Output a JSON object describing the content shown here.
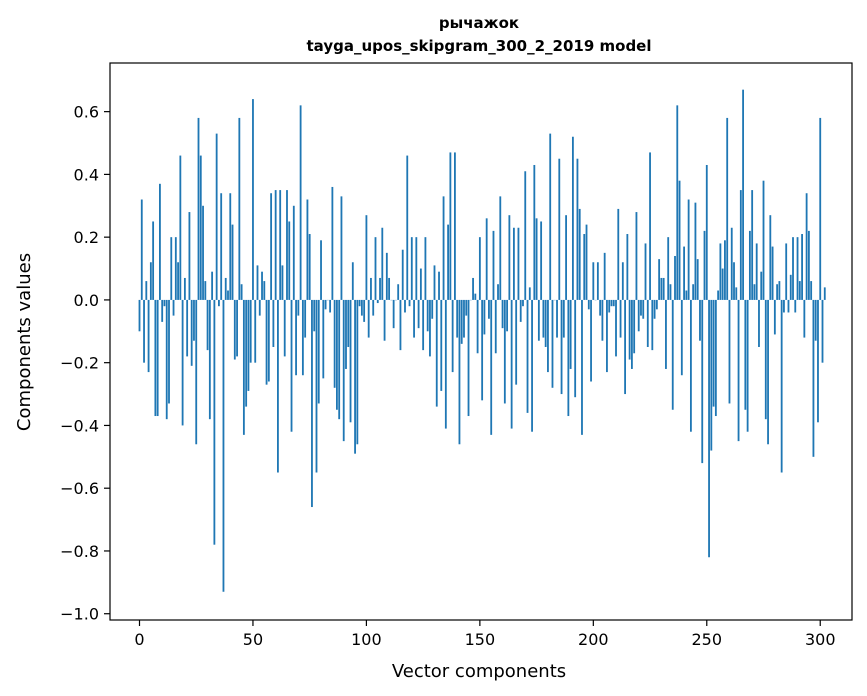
{
  "chart_data": {
    "type": "bar",
    "title": "рычажок",
    "subtitle": "tayga_upos_skipgram_300_2_2019 model",
    "xlabel": "Vector components",
    "ylabel": "Components values",
    "xlim": [
      -13,
      314
    ],
    "ylim": [
      -1.02,
      0.755
    ],
    "x_ticks": [
      0,
      50,
      100,
      150,
      200,
      250,
      300
    ],
    "y_ticks": [
      -1.0,
      -0.8,
      -0.6,
      -0.4,
      -0.2,
      0.0,
      0.2,
      0.4,
      0.6
    ],
    "x_tick_labels": [
      "0",
      "50",
      "100",
      "150",
      "200",
      "250",
      "300"
    ],
    "y_tick_labels": [
      "−1.0",
      "−0.8",
      "−0.6",
      "−0.4",
      "−0.2",
      "0.0",
      "0.2",
      "0.4",
      "0.6"
    ],
    "bar_color": "#1f77b4",
    "series": [
      {
        "name": "components",
        "values": [
          -0.1,
          0.32,
          -0.2,
          0.06,
          -0.23,
          0.12,
          0.25,
          -0.37,
          -0.37,
          0.37,
          -0.07,
          -0.02,
          -0.38,
          -0.33,
          0.2,
          -0.05,
          0.2,
          0.12,
          0.46,
          -0.4,
          0.07,
          -0.18,
          0.28,
          -0.21,
          -0.13,
          -0.46,
          0.58,
          0.46,
          0.3,
          0.06,
          -0.16,
          -0.38,
          0.09,
          -0.78,
          0.53,
          -0.02,
          0.34,
          -0.93,
          0.07,
          0.03,
          0.34,
          0.24,
          -0.19,
          -0.18,
          0.58,
          0.05,
          -0.43,
          -0.34,
          -0.29,
          -0.2,
          0.64,
          -0.2,
          0.11,
          -0.05,
          0.09,
          0.06,
          -0.27,
          -0.26,
          0.34,
          -0.15,
          0.35,
          -0.55,
          0.35,
          0.11,
          -0.18,
          0.35,
          0.25,
          -0.42,
          0.3,
          -0.24,
          -0.05,
          0.62,
          -0.24,
          -0.12,
          0.32,
          0.21,
          -0.66,
          -0.1,
          -0.55,
          -0.33,
          0.19,
          -0.25,
          -0.03,
          0.0,
          -0.04,
          0.36,
          -0.28,
          -0.35,
          -0.38,
          0.33,
          -0.45,
          -0.22,
          -0.15,
          -0.39,
          0.12,
          -0.49,
          -0.46,
          -0.02,
          -0.05,
          -0.07,
          0.27,
          -0.12,
          0.07,
          -0.05,
          0.2,
          -0.01,
          0.07,
          0.23,
          -0.13,
          0.15,
          0.07,
          0.0,
          -0.09,
          0.0,
          0.05,
          -0.16,
          0.16,
          -0.04,
          0.46,
          -0.02,
          0.2,
          -0.12,
          0.2,
          -0.09,
          0.1,
          -0.16,
          0.2,
          -0.1,
          -0.18,
          -0.06,
          0.11,
          -0.34,
          0.09,
          -0.29,
          0.33,
          -0.41,
          0.24,
          0.47,
          -0.23,
          0.47,
          -0.12,
          -0.46,
          -0.14,
          -0.12,
          -0.05,
          -0.37,
          0.0,
          0.07,
          0.02,
          -0.17,
          0.2,
          -0.32,
          -0.11,
          0.26,
          -0.06,
          -0.43,
          0.22,
          -0.17,
          0.05,
          0.33,
          -0.09,
          -0.33,
          -0.1,
          0.27,
          -0.41,
          0.23,
          -0.27,
          0.23,
          -0.07,
          -0.02,
          0.41,
          -0.36,
          0.04,
          -0.42,
          0.43,
          0.26,
          -0.13,
          0.25,
          -0.12,
          -0.15,
          -0.23,
          0.53,
          -0.28,
          0.0,
          -0.12,
          0.45,
          -0.3,
          -0.12,
          0.27,
          -0.37,
          -0.22,
          0.52,
          -0.31,
          0.45,
          0.29,
          -0.43,
          0.21,
          0.24,
          -0.03,
          -0.26,
          0.12,
          0.0,
          0.12,
          -0.05,
          -0.13,
          0.15,
          -0.23,
          -0.04,
          -0.02,
          -0.02,
          -0.18,
          0.29,
          -0.12,
          0.12,
          -0.3,
          0.21,
          -0.19,
          -0.22,
          -0.17,
          0.28,
          -0.1,
          -0.05,
          -0.06,
          0.18,
          -0.15,
          0.47,
          -0.16,
          -0.06,
          -0.03,
          0.13,
          0.07,
          0.07,
          -0.22,
          0.2,
          0.05,
          -0.35,
          0.14,
          0.62,
          0.38,
          -0.24,
          0.17,
          0.03,
          0.32,
          -0.42,
          0.05,
          0.31,
          0.13,
          -0.13,
          -0.52,
          0.22,
          0.43,
          -0.82,
          -0.48,
          -0.34,
          -0.37,
          0.03,
          0.18,
          0.1,
          0.19,
          0.58,
          -0.33,
          0.23,
          0.12,
          0.04,
          -0.45,
          0.35,
          0.67,
          -0.35,
          -0.42,
          0.22,
          0.35,
          0.05,
          0.18,
          -0.15,
          0.09,
          0.38,
          -0.38,
          -0.46,
          0.27,
          0.17,
          -0.11,
          0.05,
          0.06,
          -0.55,
          -0.04,
          0.18,
          -0.04,
          0.08,
          0.2,
          -0.04,
          0.2,
          0.06,
          0.21,
          -0.12,
          0.34,
          0.22,
          0.06,
          -0.5,
          -0.13,
          -0.39,
          0.58,
          -0.2,
          0.04
        ]
      }
    ]
  }
}
